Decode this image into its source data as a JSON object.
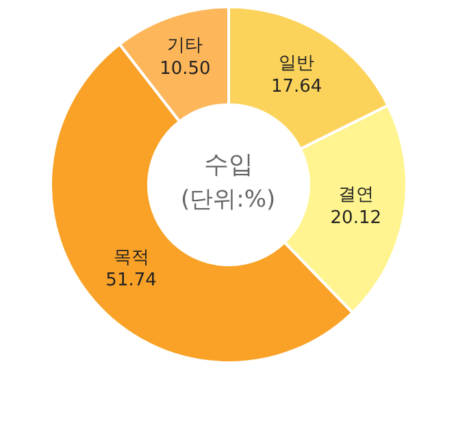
{
  "chart_data": {
    "type": "donut",
    "title": "수입",
    "subtitle": "(단위:%)",
    "categories": [
      "일반",
      "결연",
      "목적",
      "기타"
    ],
    "values": [
      17.64,
      20.12,
      51.74,
      10.5
    ],
    "value_labels": [
      "17.64",
      "20.12",
      "51.74",
      "10.50"
    ],
    "colors": [
      "#fcd35a",
      "#fff48f",
      "#f9a227",
      "#fdb65a"
    ],
    "legend": false
  }
}
